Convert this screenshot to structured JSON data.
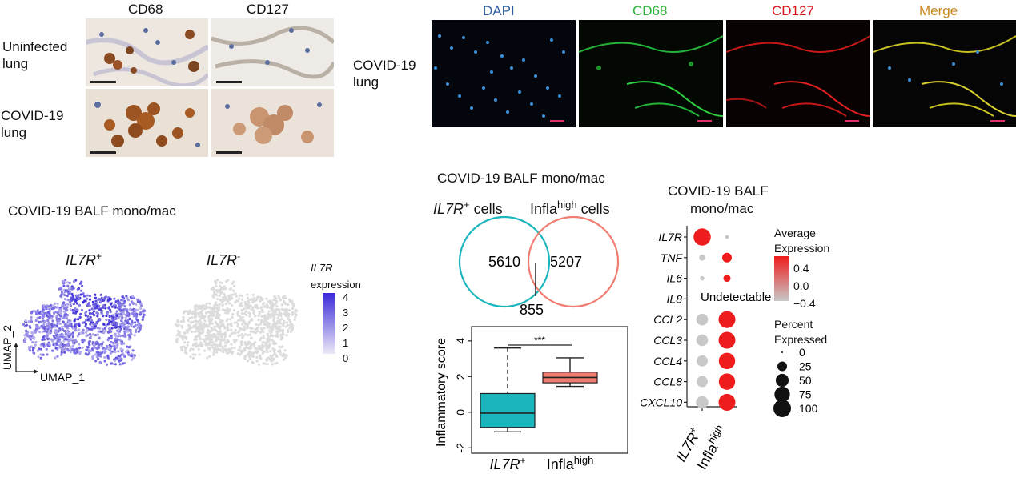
{
  "ihc": {
    "columns": [
      "CD68",
      "CD127"
    ],
    "rows": [
      {
        "line1": "Uninfected",
        "line2": "lung"
      },
      {
        "line1": "COVID-19",
        "line2": "lung"
      }
    ]
  },
  "if_panel": {
    "row_line1": "COVID-19",
    "row_line2": "lung",
    "channels": [
      {
        "name": "DAPI",
        "color": "#2f5f9e"
      },
      {
        "name": "CD68",
        "color": "#2db23a"
      },
      {
        "name": "CD127",
        "color": "#d8141b"
      },
      {
        "name": "Merge",
        "color": "#c8861f"
      }
    ]
  },
  "umap": {
    "title": "COVID-19 BALF mono/mac",
    "panel_left": {
      "main": "IL7R",
      "sup": "+"
    },
    "panel_right": {
      "main": "IL7R",
      "sup": "-"
    },
    "axis_y": "UMAP_2",
    "axis_x": "UMAP_1",
    "legend_title_gene": "IL7R",
    "legend_title_word": "expression",
    "legend_ticks": [
      "4",
      "3",
      "2",
      "1",
      "0"
    ],
    "colors": {
      "low": "#ece9f6",
      "high": "#3a2ad8",
      "negative": "#dcdcdc"
    }
  },
  "venn": {
    "title": "COVID-19 BALF mono/mac",
    "left_label": {
      "main": "IL7R",
      "sup": "+",
      "rest": " cells"
    },
    "right_label": {
      "main": "Infla",
      "sup": "high",
      "rest": " cells"
    },
    "left_only": "5610",
    "right_only": "5207",
    "overlap": "855",
    "colors": {
      "left": "#1bb6bd",
      "right": "#ef7d72"
    }
  },
  "boxplot": {
    "chart_data": {
      "type": "box",
      "ylabel": "Inflammatory score",
      "yticks": [
        -2,
        0,
        2,
        4
      ],
      "ylim": [
        -2.3,
        4.8
      ],
      "significance": "***",
      "groups": [
        {
          "main": "IL7R",
          "sup": "+",
          "min": -1.1,
          "q1": -0.85,
          "median": -0.05,
          "q3": 1.05,
          "max": 3.6,
          "color": "#1bb6bd"
        },
        {
          "main": "Infla",
          "sup": "high",
          "min": 1.45,
          "q1": 1.65,
          "median": 1.95,
          "q3": 2.25,
          "max": 3.05,
          "color": "#ef7d72"
        }
      ]
    }
  },
  "dotplot": {
    "title_line1": "COVID-19 BALF",
    "title_line2": "mono/mac",
    "undetectable": "Undetectable",
    "legend_expr_line1": "Average",
    "legend_expr_line2": "Expression",
    "expr_ticks": [
      "0.4",
      "0.0",
      "−0.4"
    ],
    "legend_pct_line1": "Percent",
    "legend_pct_line2": "Expressed",
    "pct_legend": [
      0,
      25,
      50,
      75,
      100
    ],
    "colors": {
      "low": "#c8c8c8",
      "high": "#ee1c1c"
    },
    "chart_data": {
      "type": "dot",
      "genes": [
        "IL7R",
        "TNF",
        "IL6",
        "IL8",
        "CCL2",
        "CCL3",
        "CCL4",
        "CCL8",
        "CXCL10"
      ],
      "groups": [
        {
          "main": "IL7R",
          "sup": "+"
        },
        {
          "main": "Infla",
          "sup": "high"
        }
      ],
      "percent_expressed": [
        [
          95,
          2
        ],
        [
          8,
          25
        ],
        [
          3,
          12
        ],
        [
          null,
          null
        ],
        [
          40,
          90
        ],
        [
          40,
          90
        ],
        [
          35,
          85
        ],
        [
          35,
          85
        ],
        [
          45,
          90
        ]
      ],
      "average_expression": [
        [
          0.6,
          -0.6
        ],
        [
          -0.6,
          0.6
        ],
        [
          -0.6,
          0.6
        ],
        [
          null,
          null
        ],
        [
          -0.6,
          0.6
        ],
        [
          -0.6,
          0.6
        ],
        [
          -0.6,
          0.6
        ],
        [
          -0.6,
          0.6
        ],
        [
          -0.6,
          0.6
        ]
      ]
    }
  }
}
